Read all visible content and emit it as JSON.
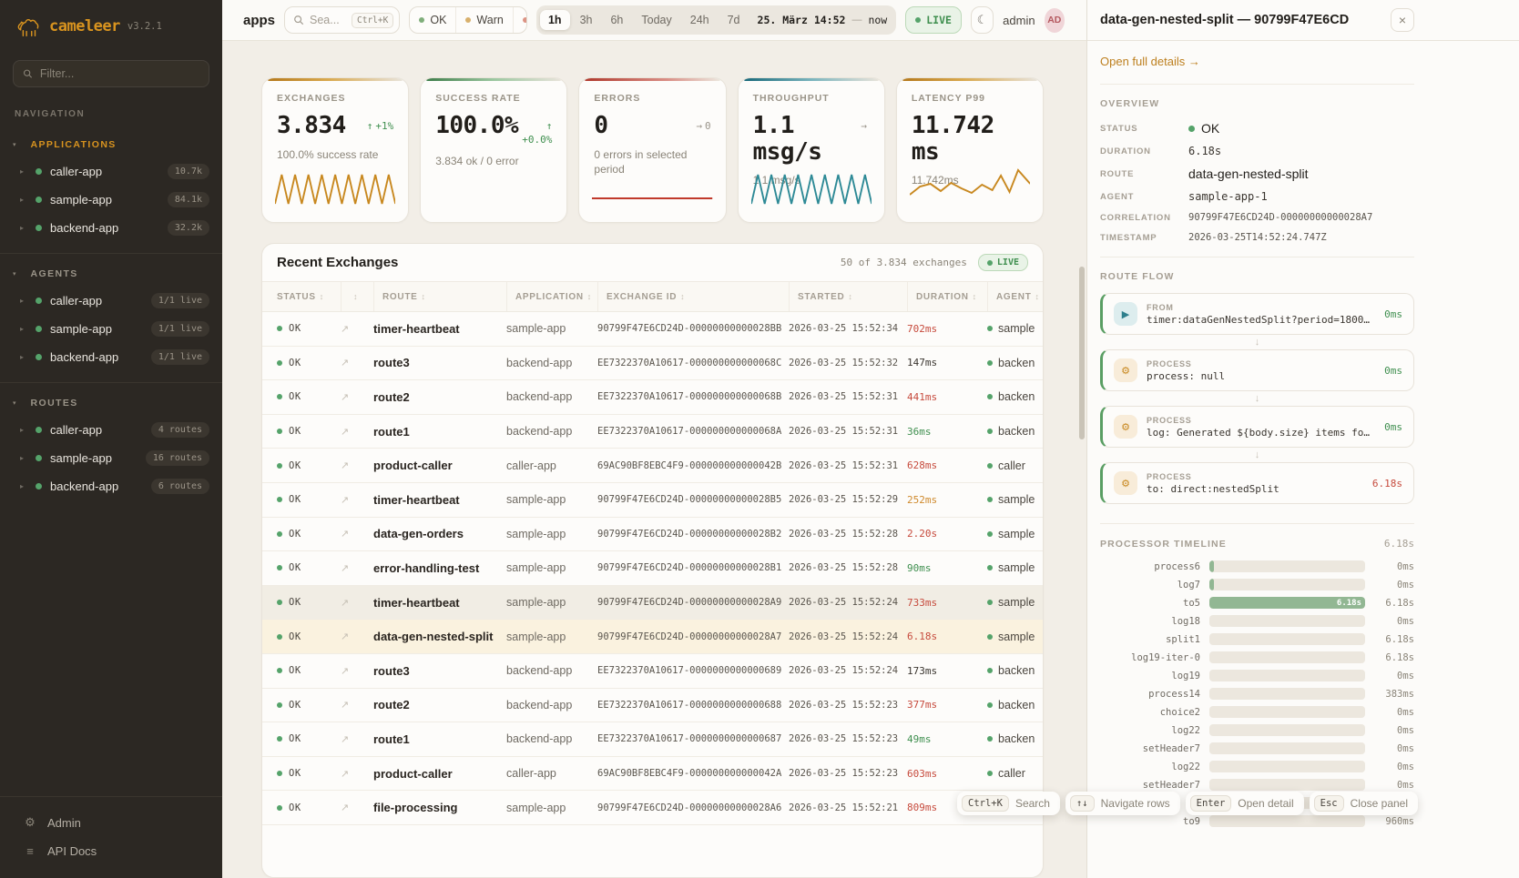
{
  "app": {
    "name": "cameleer",
    "version": "v3.2.1"
  },
  "sidebar": {
    "filter_placeholder": "Filter...",
    "nav_label": "NAVIGATION",
    "sections": [
      {
        "label": "APPLICATIONS",
        "items": [
          {
            "name": "caller-app",
            "badge": "10.7k"
          },
          {
            "name": "sample-app",
            "badge": "84.1k"
          },
          {
            "name": "backend-app",
            "badge": "32.2k"
          }
        ]
      },
      {
        "label": "AGENTS",
        "items": [
          {
            "name": "caller-app",
            "badge": "1/1 live"
          },
          {
            "name": "sample-app",
            "badge": "1/1 live"
          },
          {
            "name": "backend-app",
            "badge": "1/1 live"
          }
        ]
      },
      {
        "label": "ROUTES",
        "items": [
          {
            "name": "caller-app",
            "badge": "4 routes"
          },
          {
            "name": "sample-app",
            "badge": "16 routes"
          },
          {
            "name": "backend-app",
            "badge": "6 routes"
          }
        ]
      }
    ],
    "footer": [
      {
        "label": "Admin",
        "glyph": "⚙"
      },
      {
        "label": "API Docs",
        "glyph": "≡"
      }
    ]
  },
  "topbar": {
    "title": "apps",
    "search_placeholder": "Sea...",
    "search_kbd": "Ctrl+K",
    "status_filters": [
      {
        "label": "OK",
        "dot_class": "dot-ok"
      },
      {
        "label": "Warn",
        "dot_class": "dot-warn"
      },
      {
        "label": "E",
        "dot_class": "dot-err"
      }
    ],
    "ranges": [
      {
        "label": "1h",
        "cls": "active"
      },
      {
        "label": "3h",
        "cls": ""
      },
      {
        "label": "6h",
        "cls": ""
      },
      {
        "label": "Today",
        "cls": ""
      },
      {
        "label": "24h",
        "cls": ""
      },
      {
        "label": "7d",
        "cls": ""
      }
    ],
    "datetime": "25. März 14:52",
    "dash": "—",
    "now": "now",
    "live": "LIVE",
    "moon_icon": "☾",
    "user": "admin",
    "avatar": "AD"
  },
  "kpis": [
    {
      "label": "EXCHANGES",
      "value": "3.834",
      "delta_arrow": "↑",
      "delta_text": "+1%",
      "delta_class": "d-green",
      "layout_class": "",
      "sub": "100.0% success rate",
      "accent_class": "acc-orange",
      "spark": "zigzag",
      "spark_color": "#c8881f"
    },
    {
      "label": "SUCCESS RATE",
      "value": "100.0%",
      "delta_arrow": "↑",
      "delta_text": "+0.0%",
      "delta_class": "d-green",
      "layout_class": "stacked",
      "sub": "3.834 ok / 0 error",
      "accent_class": "acc-green",
      "spark": "none",
      "spark_color": ""
    },
    {
      "label": "ERRORS",
      "value": "0",
      "delta_arrow": "→",
      "delta_text": "0",
      "delta_class": "d-grey",
      "layout_class": "",
      "sub": "0 errors in selected period",
      "accent_class": "acc-red",
      "spark": "flat",
      "spark_color": "#c0392b"
    },
    {
      "label": "THROUGHPUT",
      "value": "1.1 msg/s",
      "delta_arrow": "→",
      "delta_text": "",
      "delta_class": "d-grey",
      "layout_class": "",
      "sub": "1.1 msg/s",
      "accent_class": "acc-teal",
      "spark": "zigzag",
      "spark_color": "#2e8a96"
    },
    {
      "label": "LATENCY P99",
      "value": "11.742 ms",
      "delta_arrow": "",
      "delta_text": "",
      "delta_class": "d-grey",
      "layout_class": "",
      "sub": "11.742ms",
      "accent_class": "acc-orange",
      "spark": "wavy",
      "spark_color": "#c8881f"
    }
  ],
  "table": {
    "title": "Recent Exchanges",
    "summary": "50 of 3.834 exchanges",
    "live_badge": "LIVE",
    "sort_icon": "↕",
    "row_icon": "↗",
    "columns": [
      {
        "label": "STATUS"
      },
      {
        "label": ""
      },
      {
        "label": "ROUTE"
      },
      {
        "label": "APPLICATION"
      },
      {
        "label": "EXCHANGE ID"
      },
      {
        "label": "STARTED"
      },
      {
        "label": "DURATION"
      },
      {
        "label": "AGENT"
      }
    ],
    "rows": [
      {
        "status": "OK",
        "route": "timer-heartbeat",
        "app": "sample-app",
        "id": "90799F47E6CD24D-00000000000028BB",
        "started": "2026-03-25 15:52:34",
        "duration": "702ms",
        "dcls": "dur-red",
        "agent": "sample",
        "state": ""
      },
      {
        "status": "OK",
        "route": "route3",
        "app": "backend-app",
        "id": "EE7322370A10617-000000000000068C",
        "started": "2026-03-25 15:52:32",
        "duration": "147ms",
        "dcls": "dur-neutral",
        "agent": "backen",
        "state": ""
      },
      {
        "status": "OK",
        "route": "route2",
        "app": "backend-app",
        "id": "EE7322370A10617-000000000000068B",
        "started": "2026-03-25 15:52:31",
        "duration": "441ms",
        "dcls": "dur-red",
        "agent": "backen",
        "state": ""
      },
      {
        "status": "OK",
        "route": "route1",
        "app": "backend-app",
        "id": "EE7322370A10617-000000000000068A",
        "started": "2026-03-25 15:52:31",
        "duration": "36ms",
        "dcls": "dur-green",
        "agent": "backen",
        "state": ""
      },
      {
        "status": "OK",
        "route": "product-caller",
        "app": "caller-app",
        "id": "69AC90BF8EBC4F9-000000000000042B",
        "started": "2026-03-25 15:52:31",
        "duration": "628ms",
        "dcls": "dur-red",
        "agent": "caller",
        "state": ""
      },
      {
        "status": "OK",
        "route": "timer-heartbeat",
        "app": "sample-app",
        "id": "90799F47E6CD24D-00000000000028B5",
        "started": "2026-03-25 15:52:29",
        "duration": "252ms",
        "dcls": "dur-orange",
        "agent": "sample",
        "state": ""
      },
      {
        "status": "OK",
        "route": "data-gen-orders",
        "app": "sample-app",
        "id": "90799F47E6CD24D-00000000000028B2",
        "started": "2026-03-25 15:52:28",
        "duration": "2.20s",
        "dcls": "dur-red",
        "agent": "sample",
        "state": ""
      },
      {
        "status": "OK",
        "route": "error-handling-test",
        "app": "sample-app",
        "id": "90799F47E6CD24D-00000000000028B1",
        "started": "2026-03-25 15:52:28",
        "duration": "90ms",
        "dcls": "dur-green",
        "agent": "sample",
        "state": ""
      },
      {
        "status": "OK",
        "route": "timer-heartbeat",
        "app": "sample-app",
        "id": "90799F47E6CD24D-00000000000028A9",
        "started": "2026-03-25 15:52:24",
        "duration": "733ms",
        "dcls": "dur-red",
        "agent": "sample",
        "state": "hov"
      },
      {
        "status": "OK",
        "route": "data-gen-nested-split",
        "app": "sample-app",
        "id": "90799F47E6CD24D-00000000000028A7",
        "started": "2026-03-25 15:52:24",
        "duration": "6.18s",
        "dcls": "dur-red",
        "agent": "sample",
        "state": "sel"
      },
      {
        "status": "OK",
        "route": "route3",
        "app": "backend-app",
        "id": "EE7322370A10617-0000000000000689",
        "started": "2026-03-25 15:52:24",
        "duration": "173ms",
        "dcls": "dur-neutral",
        "agent": "backen",
        "state": ""
      },
      {
        "status": "OK",
        "route": "route2",
        "app": "backend-app",
        "id": "EE7322370A10617-0000000000000688",
        "started": "2026-03-25 15:52:23",
        "duration": "377ms",
        "dcls": "dur-red",
        "agent": "backen",
        "state": ""
      },
      {
        "status": "OK",
        "route": "route1",
        "app": "backend-app",
        "id": "EE7322370A10617-0000000000000687",
        "started": "2026-03-25 15:52:23",
        "duration": "49ms",
        "dcls": "dur-green",
        "agent": "backen",
        "state": ""
      },
      {
        "status": "OK",
        "route": "product-caller",
        "app": "caller-app",
        "id": "69AC90BF8EBC4F9-000000000000042A",
        "started": "2026-03-25 15:52:23",
        "duration": "603ms",
        "dcls": "dur-red",
        "agent": "caller",
        "state": ""
      },
      {
        "status": "OK",
        "route": "file-processing",
        "app": "sample-app",
        "id": "90799F47E6CD24D-00000000000028A6",
        "started": "2026-03-25 15:52:21",
        "duration": "809ms",
        "dcls": "dur-red",
        "agent": "sample",
        "state": ""
      }
    ]
  },
  "panel": {
    "title": "data-gen-nested-split — 90799F47E6CD",
    "close_icon": "×",
    "link": "Open full details →",
    "overview": {
      "label": "OVERVIEW",
      "rows": [
        {
          "key": "STATUS",
          "value": "OK",
          "vclass": "v-status",
          "dotclass": "show"
        },
        {
          "key": "DURATION",
          "value": "6.18s",
          "vclass": "v-mono",
          "dotclass": ""
        },
        {
          "key": "ROUTE",
          "value": "data-gen-nested-split",
          "vclass": "v-plain",
          "dotclass": ""
        },
        {
          "key": "AGENT",
          "value": "sample-app-1",
          "vclass": "v-mono",
          "dotclass": ""
        },
        {
          "key": "CORRELATION",
          "value": "90799F47E6CD24D-00000000000028A7",
          "vclass": "v-mono-sm",
          "dotclass": ""
        },
        {
          "key": "TIMESTAMP",
          "value": "2026-03-25T14:52:24.747Z",
          "vclass": "v-mono-sm",
          "dotclass": ""
        }
      ]
    },
    "route_flow": {
      "label": "ROUTE FLOW",
      "steps": [
        {
          "kind": "FROM",
          "text": "timer:dataGenNestedSplit?period=18000&delay=40…",
          "duration": "0ms",
          "dur_class": "d-green",
          "icon": "play-icon",
          "icon_char": "▶",
          "icon_class": "ico-from",
          "arrow_class": ""
        },
        {
          "kind": "PROCESS",
          "text": "process: null",
          "duration": "0ms",
          "dur_class": "d-green",
          "icon": "gear-icon",
          "icon_char": "⚙",
          "icon_class": "ico-proc",
          "arrow_class": ""
        },
        {
          "kind": "PROCESS",
          "text": "log: Generated ${body.size} items for nested …",
          "duration": "0ms",
          "dur_class": "d-green",
          "icon": "gear-icon",
          "icon_char": "⚙",
          "icon_class": "ico-proc",
          "arrow_class": ""
        },
        {
          "kind": "PROCESS",
          "text": "to: direct:nestedSplit",
          "duration": "6.18s",
          "dur_class": "d-red",
          "icon": "gear-icon",
          "icon_char": "⚙",
          "icon_class": "ico-proc",
          "arrow_class": "hide"
        }
      ]
    },
    "timeline": {
      "label": "PROCESSOR TIMELINE",
      "total": "6.18s",
      "bars": [
        {
          "name": "process6",
          "value": "0ms",
          "fill": 3,
          "inner": ""
        },
        {
          "name": "log7",
          "value": "0ms",
          "fill": 3,
          "inner": ""
        },
        {
          "name": "to5",
          "value": "6.18s",
          "fill": 100,
          "inner": "6.18s"
        },
        {
          "name": "log18",
          "value": "0ms",
          "fill": 0,
          "inner": ""
        },
        {
          "name": "split1",
          "value": "6.18s",
          "fill": 0,
          "inner": ""
        },
        {
          "name": "log19-iter-0",
          "value": "6.18s",
          "fill": 0,
          "inner": ""
        },
        {
          "name": "log19",
          "value": "0ms",
          "fill": 0,
          "inner": ""
        },
        {
          "name": "process14",
          "value": "383ms",
          "fill": 0,
          "inner": ""
        },
        {
          "name": "choice2",
          "value": "0ms",
          "fill": 0,
          "inner": ""
        },
        {
          "name": "log22",
          "value": "0ms",
          "fill": 0,
          "inner": ""
        },
        {
          "name": "setHeader7",
          "value": "0ms",
          "fill": 0,
          "inner": ""
        },
        {
          "name": "log22",
          "value": "0ms",
          "fill": 0,
          "inner": ""
        },
        {
          "name": "setHeader7",
          "value": "0ms",
          "fill": 0,
          "inner": ""
        },
        {
          "name": "",
          "value": "",
          "fill": 0,
          "inner": ""
        },
        {
          "name": "to9",
          "value": "960ms",
          "fill": 0,
          "inner": ""
        }
      ]
    }
  },
  "shortcuts": [
    {
      "key": "Ctrl+K",
      "label": "Search"
    },
    {
      "key": "↑↓",
      "label": "Navigate rows"
    },
    {
      "key": "Enter",
      "label": "Open detail"
    },
    {
      "key": "Esc",
      "label": "Close panel"
    }
  ]
}
